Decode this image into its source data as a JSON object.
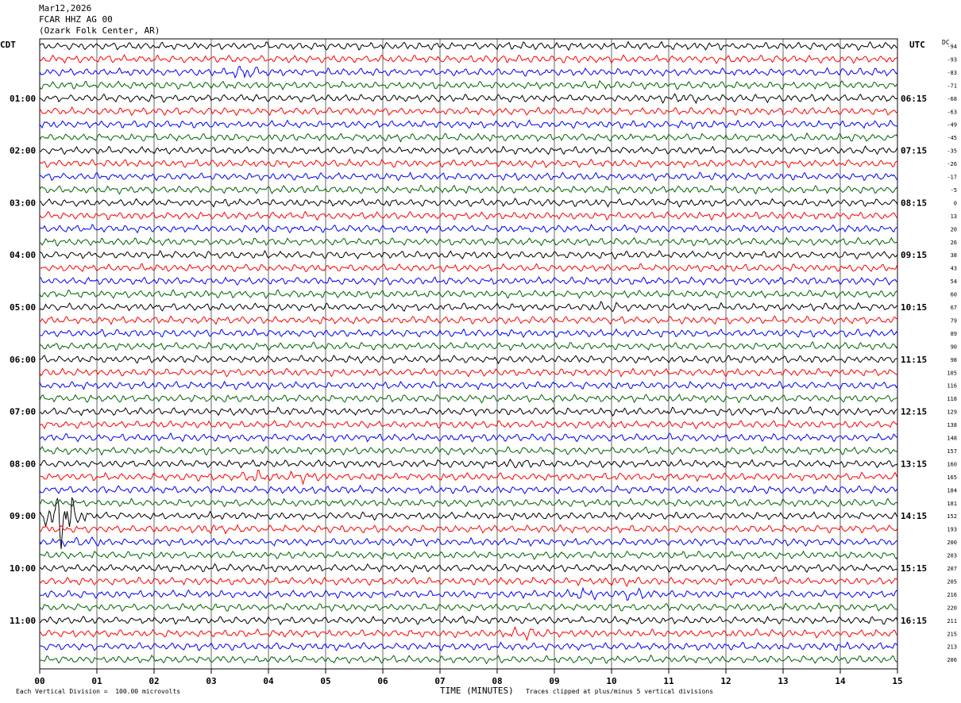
{
  "header": {
    "date": "Mar12,2026",
    "station": "FCAR HHZ AG 00",
    "location": "(Ozark Folk Center, AR)"
  },
  "left_label": "CDT",
  "right_label": "UTC",
  "dc_label": "DC",
  "footer": {
    "division": "Each Vertical Division =  100.00 microvolts",
    "xlabel": "TIME (MINUTES)",
    "clip": "Traces clipped at plus/minus 5 vertical divisions"
  },
  "colors": {
    "trace_cycle": [
      "#000000",
      "#ff0000",
      "#0000ff",
      "#006400"
    ],
    "grid": "#000000"
  },
  "chart_data": {
    "type": "line",
    "title": "",
    "xlabel": "TIME (MINUTES)",
    "xlim": [
      0,
      15
    ],
    "x_ticks": [
      "00",
      "01",
      "02",
      "03",
      "04",
      "05",
      "06",
      "07",
      "08",
      "09",
      "10",
      "11",
      "12",
      "13",
      "14",
      "15"
    ],
    "rows_per_hour": 4,
    "minutes_per_row": 15,
    "left_time_labels": [
      "01:00",
      "02:00",
      "03:00",
      "04:00",
      "05:00",
      "06:00",
      "07:00",
      "08:00",
      "09:00",
      "10:00",
      "11:00"
    ],
    "right_time_labels": [
      "06:15",
      "07:15",
      "08:15",
      "09:15",
      "10:15",
      "11:15",
      "12:15",
      "13:15",
      "14:15",
      "15:15",
      "16:15"
    ],
    "dc_offsets": [
      "-94",
      "-93",
      "-83",
      "-71",
      "-68",
      "-63",
      "-49",
      "-45",
      "-35",
      "-26",
      "-17",
      "-5",
      "0",
      "13",
      "20",
      "26",
      "38",
      "43",
      "54",
      "60",
      "67",
      "79",
      "89",
      "90",
      "98",
      "105",
      "116",
      "118",
      "129",
      "138",
      "148",
      "157",
      "160",
      "165",
      "184",
      "181",
      "152",
      "193",
      "200",
      "203",
      "207",
      "205",
      "216",
      "220",
      "211",
      "215",
      "213",
      "206"
    ],
    "events": [
      {
        "row": 2,
        "minute": 3.6,
        "amp": 2.2
      },
      {
        "row": 3,
        "minute": 9.8,
        "amp": 1.4
      },
      {
        "row": 4,
        "minute": 11.3,
        "amp": 1.6
      },
      {
        "row": 6,
        "minute": 11.5,
        "amp": 1.3
      },
      {
        "row": 20,
        "minute": 10.0,
        "amp": 1.8
      },
      {
        "row": 28,
        "minute": 13.4,
        "amp": 1.2
      },
      {
        "row": 30,
        "minute": 8.8,
        "amp": 1.2
      },
      {
        "row": 32,
        "minute": 8.4,
        "amp": 1.5
      },
      {
        "row": 33,
        "minute": 3.8,
        "amp": 1.8
      },
      {
        "row": 33,
        "minute": 4.6,
        "amp": 1.8
      },
      {
        "row": 36,
        "minute": 0.4,
        "amp": 6.0
      },
      {
        "row": 37,
        "minute": 3.0,
        "amp": 1.3
      },
      {
        "row": 38,
        "minute": 0.8,
        "amp": 1.5
      },
      {
        "row": 41,
        "minute": 10.2,
        "amp": 1.5
      },
      {
        "row": 42,
        "minute": 9.5,
        "amp": 1.8
      },
      {
        "row": 42,
        "minute": 10.4,
        "amp": 1.8
      },
      {
        "row": 44,
        "minute": 7.5,
        "amp": 1.2
      },
      {
        "row": 45,
        "minute": 8.5,
        "amp": 2.0
      },
      {
        "row": 46,
        "minute": 13.8,
        "amp": 1.3
      }
    ]
  }
}
